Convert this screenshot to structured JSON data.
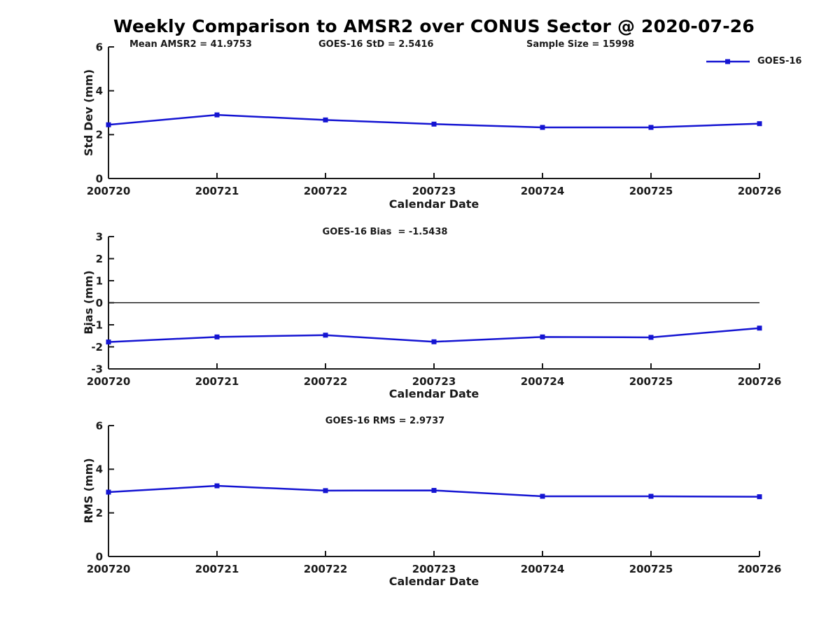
{
  "figure": {
    "title": "Weekly Comparison to AMSR2 over CONUS Sector @ 2020-07-26"
  },
  "style": {
    "line_color": "#1414d2",
    "axis_color": "#1a1a1a",
    "zero_line_color": "#000000",
    "background": "#ffffff"
  },
  "chart_data": [
    {
      "type": "line",
      "panel": "std-dev",
      "categories": [
        "200720",
        "200721",
        "200722",
        "200723",
        "200724",
        "200725",
        "200726"
      ],
      "series": [
        {
          "name": "GOES-16",
          "values": [
            2.45,
            2.9,
            2.67,
            2.48,
            2.33,
            2.33,
            2.5
          ]
        }
      ],
      "annotations": [
        "Mean AMSR2 = 41.9753",
        "GOES-16 StD = 2.5416",
        "Sample Size = 15998"
      ],
      "xlabel": "Calendar Date",
      "ylabel": "Std Dev (mm)",
      "ylim": [
        0,
        6
      ],
      "yticks": [
        0,
        2,
        4,
        6
      ],
      "grid": false,
      "legend": {
        "label": "GOES-16",
        "position": "top-right",
        "frame": false
      },
      "marker": "square"
    },
    {
      "type": "line",
      "panel": "bias",
      "title": "GOES-16 Bias  = -1.5438",
      "categories": [
        "200720",
        "200721",
        "200722",
        "200723",
        "200724",
        "200725",
        "200726"
      ],
      "series": [
        {
          "name": "GOES-16",
          "values": [
            -1.78,
            -1.55,
            -1.47,
            -1.77,
            -1.55,
            -1.57,
            -1.15
          ]
        }
      ],
      "xlabel": "Calendar Date",
      "ylabel": "Bias (mm)",
      "ylim": [
        -3,
        3
      ],
      "yticks": [
        -3,
        -2,
        -1,
        0,
        1,
        2,
        3
      ],
      "zero_line": true,
      "grid": false,
      "marker": "square"
    },
    {
      "type": "line",
      "panel": "rms",
      "title": "GOES-16 RMS = 2.9737",
      "categories": [
        "200720",
        "200721",
        "200722",
        "200723",
        "200724",
        "200725",
        "200726"
      ],
      "series": [
        {
          "name": "GOES-16",
          "values": [
            2.95,
            3.24,
            3.02,
            3.03,
            2.76,
            2.76,
            2.74
          ]
        }
      ],
      "xlabel": "Calendar Date",
      "ylabel": "RMS (mm)",
      "ylim": [
        0,
        6
      ],
      "yticks": [
        0,
        2,
        4,
        6
      ],
      "grid": false,
      "marker": "square"
    }
  ]
}
